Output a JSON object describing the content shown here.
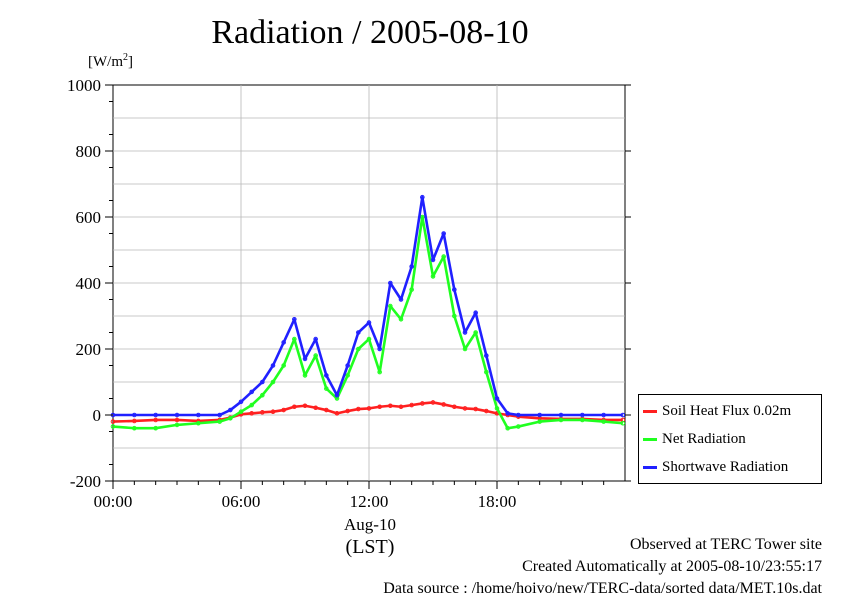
{
  "chart_data": {
    "type": "line",
    "title": "Radiation / 2005-08-10",
    "ylabel": "[W/m2]",
    "ylim": [
      -200,
      1000
    ],
    "yticks": [
      "1000",
      "800",
      "600",
      "400",
      "200",
      "0",
      "-200"
    ],
    "xticks": [
      "00:00",
      "06:00",
      "12:00",
      "18:00"
    ],
    "xlabel_date": "Aug-10",
    "xlabel_tz": "(LST)",
    "x_hours": [
      0,
      1,
      2,
      3,
      4,
      5,
      5.5,
      6,
      6.5,
      7,
      7.5,
      8,
      8.5,
      9,
      9.5,
      10,
      10.5,
      11,
      11.5,
      12,
      12.5,
      13,
      13.5,
      14,
      14.5,
      15,
      15.5,
      16,
      16.5,
      17,
      17.5,
      18,
      18.5,
      19,
      20,
      21,
      22,
      23,
      23.9
    ],
    "series": [
      {
        "name": "Soil Heat Flux 0.02m",
        "color": "#ff2020",
        "values": [
          -20,
          -18,
          -15,
          -15,
          -18,
          -15,
          -8,
          2,
          5,
          8,
          10,
          15,
          25,
          28,
          22,
          15,
          5,
          12,
          18,
          20,
          25,
          28,
          25,
          30,
          35,
          38,
          32,
          25,
          20,
          18,
          12,
          5,
          0,
          -5,
          -10,
          -12,
          -12,
          -15,
          -15
        ]
      },
      {
        "name": "Net Radiation",
        "color": "#20ff20",
        "values": [
          -35,
          -40,
          -40,
          -30,
          -25,
          -20,
          -10,
          10,
          30,
          60,
          100,
          150,
          230,
          120,
          180,
          80,
          50,
          120,
          200,
          230,
          130,
          330,
          290,
          380,
          600,
          420,
          480,
          300,
          200,
          250,
          130,
          20,
          -40,
          -35,
          -20,
          -15,
          -15,
          -20,
          -25
        ]
      },
      {
        "name": "Shortwave Radiation",
        "color": "#2020ff",
        "values": [
          0,
          0,
          0,
          0,
          0,
          0,
          15,
          40,
          70,
          100,
          150,
          220,
          290,
          170,
          230,
          120,
          60,
          150,
          250,
          280,
          200,
          400,
          350,
          450,
          660,
          470,
          550,
          380,
          250,
          310,
          180,
          50,
          5,
          0,
          0,
          0,
          0,
          0,
          0
        ]
      }
    ],
    "legend_position": "right-bottom",
    "grid": true
  },
  "footer": {
    "line1": "Observed at TERC Tower site",
    "line2": "Created Automatically at 2005-08-10/23:55:17",
    "line3": "Data source : /home/hoivo/new/TERC-data/sorted  data/MET.10s.dat"
  }
}
